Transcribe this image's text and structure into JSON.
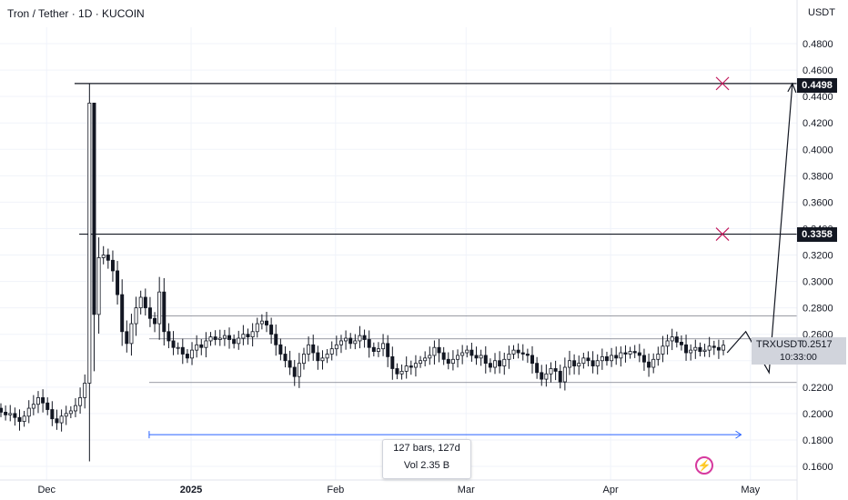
{
  "header": {
    "title": "Tron / Tether · 1D · KUCOIN",
    "currency": "USDT"
  },
  "badges": {
    "upper_level": "0.4498",
    "middle_level": "0.3358",
    "symbol": "TRXUSDT",
    "last_price": "0.2517",
    "countdown": "10:33:00"
  },
  "range_info": {
    "bars": "127 bars, 127d",
    "volume": "Vol 2.35 B"
  },
  "icons": {
    "alert": "lightning-bolt-icon"
  },
  "colors": {
    "up": "#131722",
    "down": "#131722",
    "level_line": "#131722",
    "cross": "#c2185b",
    "measure": "#2962ff",
    "grid": "#f0f3fa"
  },
  "chart_data": {
    "type": "candlestick",
    "symbol": "TRXUSDT",
    "exchange": "KUCOIN",
    "interval": "1D",
    "x_start": "2024-11-21",
    "x_end": "2025-05-11",
    "x_ticks": [
      {
        "date": "2024-12-01",
        "label": "Dec"
      },
      {
        "date": "2025-01-01",
        "label": "2025"
      },
      {
        "date": "2025-02-01",
        "label": "Feb"
      },
      {
        "date": "2025-03-01",
        "label": "Mar"
      },
      {
        "date": "2025-04-01",
        "label": "Apr"
      },
      {
        "date": "2025-05-01",
        "label": "May"
      }
    ],
    "y_range": [
      0.15,
      0.5
    ],
    "y_ticks": [
      0.16,
      0.18,
      0.2,
      0.22,
      0.24,
      0.26,
      0.28,
      0.3,
      0.32,
      0.34,
      0.36,
      0.38,
      0.4,
      0.42,
      0.44,
      0.46,
      0.48
    ],
    "y_tick_labels": [
      "0.1600",
      "0.1800",
      "0.2000",
      "0.2200",
      "0.2400",
      "0.2600",
      "0.2800",
      "0.3000",
      "0.3200",
      "0.3400",
      "0.3600",
      "0.3800",
      "0.4000",
      "0.4200",
      "0.4400",
      "0.4600",
      "0.4800"
    ],
    "grid": true,
    "closes": [
      0.201,
      0.199,
      0.2,
      0.197,
      0.194,
      0.198,
      0.204,
      0.207,
      0.212,
      0.208,
      0.203,
      0.196,
      0.193,
      0.198,
      0.2,
      0.202,
      0.206,
      0.212,
      0.223,
      0.435,
      0.275,
      0.318,
      0.32,
      0.316,
      0.308,
      0.29,
      0.262,
      0.253,
      0.268,
      0.28,
      0.288,
      0.28,
      0.272,
      0.268,
      0.292,
      0.262,
      0.255,
      0.25,
      0.25,
      0.245,
      0.242,
      0.248,
      0.252,
      0.25,
      0.255,
      0.258,
      0.256,
      0.257,
      0.259,
      0.256,
      0.253,
      0.257,
      0.26,
      0.258,
      0.262,
      0.268,
      0.27,
      0.267,
      0.26,
      0.252,
      0.245,
      0.24,
      0.235,
      0.228,
      0.238,
      0.245,
      0.252,
      0.246,
      0.24,
      0.242,
      0.245,
      0.249,
      0.252,
      0.255,
      0.257,
      0.253,
      0.255,
      0.259,
      0.256,
      0.25,
      0.247,
      0.249,
      0.253,
      0.243,
      0.234,
      0.23,
      0.232,
      0.236,
      0.235,
      0.238,
      0.24,
      0.242,
      0.244,
      0.25,
      0.246,
      0.241,
      0.238,
      0.241,
      0.244,
      0.246,
      0.248,
      0.244,
      0.242,
      0.244,
      0.238,
      0.235,
      0.24,
      0.236,
      0.241,
      0.245,
      0.248,
      0.246,
      0.245,
      0.244,
      0.238,
      0.231,
      0.226,
      0.23,
      0.234,
      0.232,
      0.224,
      0.235,
      0.24,
      0.236,
      0.238,
      0.242,
      0.24,
      0.236,
      0.24,
      0.243,
      0.24,
      0.244,
      0.242,
      0.246,
      0.245,
      0.247,
      0.246,
      0.244,
      0.239,
      0.235,
      0.241,
      0.245,
      0.251,
      0.255,
      0.258,
      0.254,
      0.252,
      0.246,
      0.248,
      0.25,
      0.247,
      0.248,
      0.251,
      0.25,
      0.248,
      0.2517
    ],
    "levels": [
      {
        "label": "0.4498",
        "value": 0.4498,
        "from": "2024-12-07"
      },
      {
        "label": "0.3358",
        "value": 0.3358,
        "from": "2024-12-08"
      }
    ],
    "range_lines": [
      0.274,
      0.2565,
      0.2235
    ],
    "crosses": [
      {
        "date": "2025-04-25",
        "value": 0.4498
      },
      {
        "date": "2025-04-25",
        "value": 0.3358
      }
    ],
    "projection_path": [
      {
        "date": "2025-04-26",
        "value": 0.246
      },
      {
        "date": "2025-04-30",
        "value": 0.262
      },
      {
        "date": "2025-05-05",
        "value": 0.231
      },
      {
        "date": "2025-05-10",
        "value": 0.4498
      }
    ],
    "measure": {
      "from": "2024-12-23",
      "to": "2025-04-29",
      "value": 0.184
    }
  }
}
